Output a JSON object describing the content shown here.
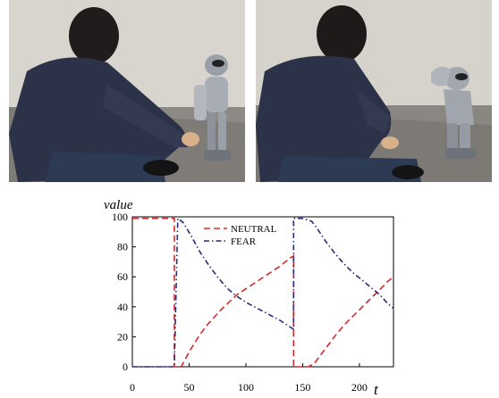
{
  "figure": {
    "photos": [
      {
        "description_name": "photo-human-robot-touch"
      },
      {
        "description_name": "photo-robot-fear-pose"
      }
    ]
  },
  "chart_data": {
    "type": "line",
    "title": "",
    "xlabel": "t",
    "ylabel": "value",
    "xlim": [
      0,
      230
    ],
    "ylim": [
      0,
      100
    ],
    "xticks": [
      0,
      50,
      100,
      150,
      200
    ],
    "yticks": [
      0,
      20,
      40,
      60,
      80,
      100
    ],
    "grid": false,
    "legend_position": "top-center",
    "series": [
      {
        "name": "NEUTRAL",
        "color": "#d62a2a",
        "style": "dashed",
        "points": [
          [
            0,
            99
          ],
          [
            37,
            99
          ],
          [
            37,
            0
          ],
          [
            43,
            0
          ],
          [
            46,
            4
          ],
          [
            50,
            10
          ],
          [
            55,
            16
          ],
          [
            60,
            22
          ],
          [
            66,
            28
          ],
          [
            72,
            33
          ],
          [
            78,
            38
          ],
          [
            85,
            43
          ],
          [
            92,
            48
          ],
          [
            100,
            52
          ],
          [
            110,
            57
          ],
          [
            120,
            62
          ],
          [
            130,
            67
          ],
          [
            138,
            72
          ],
          [
            142,
            74
          ],
          [
            142,
            0
          ],
          [
            155,
            0
          ],
          [
            160,
            2
          ],
          [
            165,
            7
          ],
          [
            172,
            14
          ],
          [
            180,
            22
          ],
          [
            188,
            29
          ],
          [
            196,
            35
          ],
          [
            204,
            41
          ],
          [
            212,
            47
          ],
          [
            220,
            53
          ],
          [
            225,
            57
          ],
          [
            230,
            60
          ]
        ]
      },
      {
        "name": "FEAR",
        "color": "#2a2a7a",
        "style": "dashdot",
        "points": [
          [
            0,
            0
          ],
          [
            37,
            0
          ],
          [
            37,
            2
          ],
          [
            40,
            99
          ],
          [
            45,
            96
          ],
          [
            52,
            87
          ],
          [
            60,
            76
          ],
          [
            68,
            67
          ],
          [
            76,
            59
          ],
          [
            84,
            52
          ],
          [
            92,
            47
          ],
          [
            100,
            43
          ],
          [
            110,
            39
          ],
          [
            120,
            35
          ],
          [
            130,
            31
          ],
          [
            138,
            27
          ],
          [
            142,
            25
          ],
          [
            142,
            99
          ],
          [
            150,
            99
          ],
          [
            158,
            97
          ],
          [
            163,
            92
          ],
          [
            170,
            84
          ],
          [
            178,
            76
          ],
          [
            186,
            69
          ],
          [
            194,
            63
          ],
          [
            202,
            58
          ],
          [
            210,
            53
          ],
          [
            218,
            48
          ],
          [
            225,
            42
          ],
          [
            230,
            39
          ]
        ]
      }
    ],
    "tick_labels_x": [
      "0",
      "50",
      "100",
      "150",
      "200"
    ],
    "tick_labels_y": [
      "0",
      "20",
      "40",
      "60",
      "80",
      "100"
    ]
  }
}
